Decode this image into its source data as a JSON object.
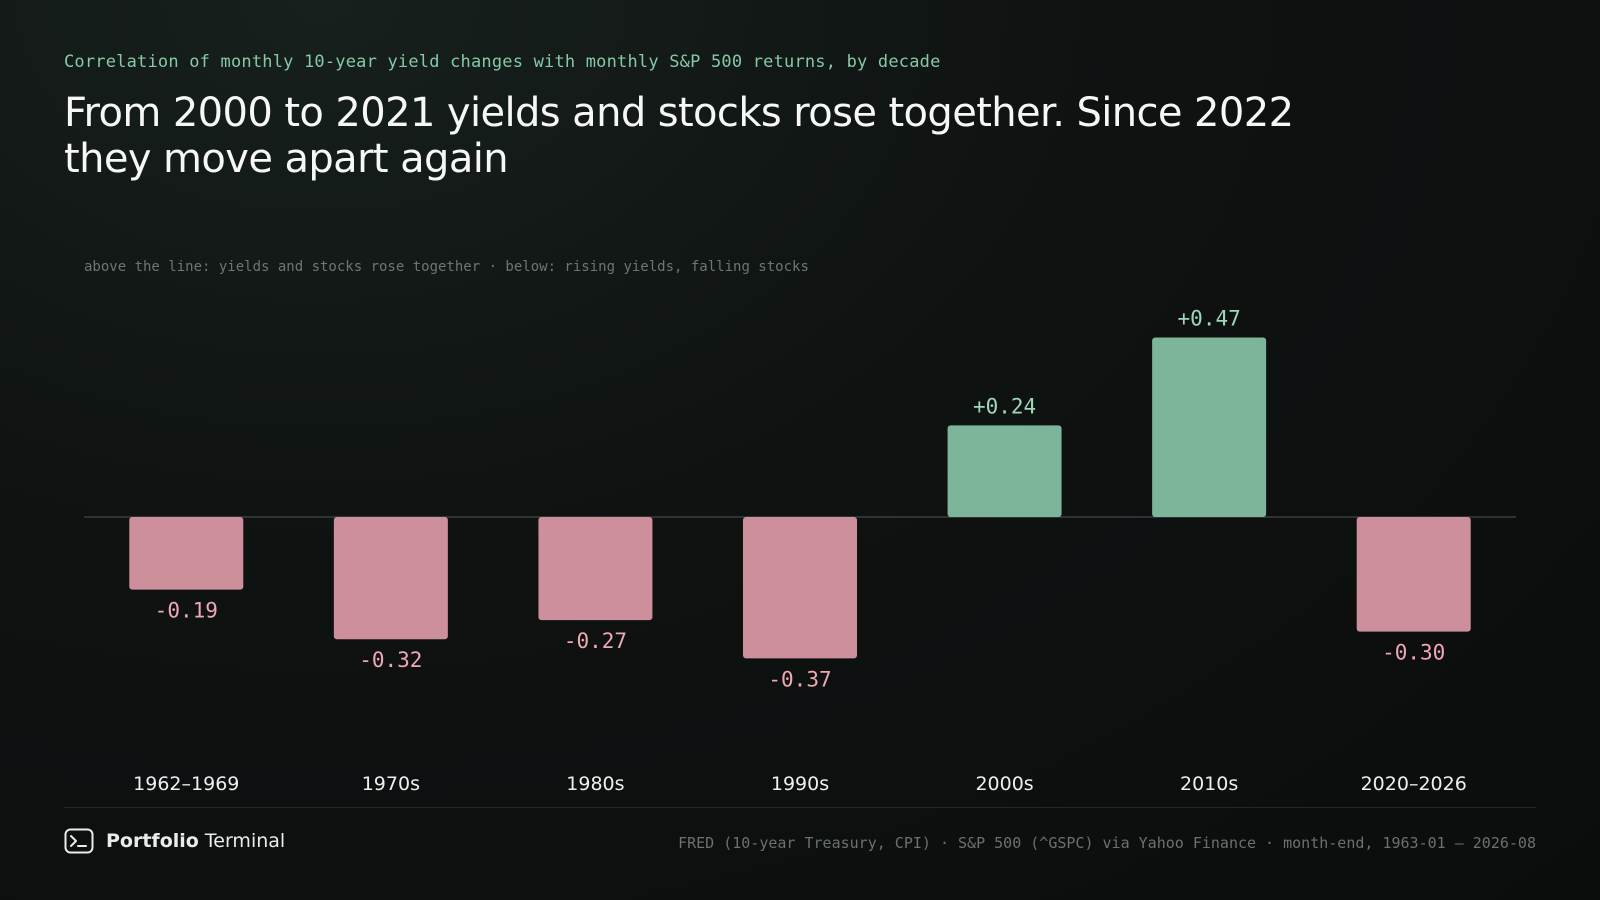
{
  "header": {
    "subtitle": "Correlation of monthly 10-year yield changes with monthly S&P 500 returns, by decade",
    "title": "From 2000 to 2021 yields and stocks rose together. Since 2022 they move apart again"
  },
  "note": "above the line: yields and stocks rose together · below: rising yields, falling stocks",
  "chart_data": {
    "type": "bar",
    "categories": [
      "1962–1969",
      "1970s",
      "1980s",
      "1990s",
      "2000s",
      "2010s",
      "2020–2026"
    ],
    "values": [
      -0.19,
      -0.32,
      -0.27,
      -0.37,
      0.24,
      0.47,
      -0.3
    ],
    "value_labels": [
      "-0.19",
      "-0.32",
      "-0.27",
      "-0.37",
      "+0.24",
      "+0.47",
      "-0.30"
    ],
    "ylim": [
      -0.6,
      0.6
    ],
    "grid": false,
    "baseline": 0,
    "colors": {
      "positive": "#7db59a",
      "negative": "#cc8f9b",
      "positive_label": "#9fd8b8",
      "negative_label": "#f0a7b4",
      "baseline": "#3a3f3d",
      "category_label": "#eef0ef"
    }
  },
  "footer": {
    "brand_bold": "Portfolio",
    "brand_rest": "Terminal",
    "brand_icon": "terminal-icon",
    "source": "FRED (10-year Treasury, CPI) · S&P 500 (^GSPC) via Yahoo Finance · month-end, 1963-01 – 2026-08"
  }
}
